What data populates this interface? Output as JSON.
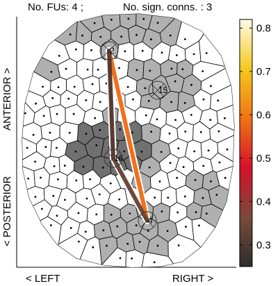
{
  "header": {
    "fus_text": "No. FUs: 4 ;",
    "conns_text": "No. sign. conns. : 3"
  },
  "axes": {
    "anterior_label": "ANTERIOR >",
    "posterior_label": "< POSTERIOR",
    "left_label": "< LEFT",
    "right_label": "RIGHT >"
  },
  "colorbar": {
    "ticks": [
      "0.8",
      "0.7",
      "0.6",
      "0.5",
      "0.4",
      "0.3"
    ],
    "tick_values": [
      0.8,
      0.7,
      0.6,
      0.5,
      0.4,
      0.3
    ],
    "range": [
      0.25,
      0.82
    ],
    "stops": [
      "#2d2d2d",
      "#7a4a3a",
      "#d4122a",
      "#f07414",
      "#f5c91e",
      "#fffbe8"
    ]
  },
  "functional_units": [
    {
      "id": "fu-2",
      "label": "2"
    },
    {
      "id": "fu-15",
      "label": "15"
    },
    {
      "id": "fu-16",
      "label": "16"
    },
    {
      "id": "fu-4",
      "label": "4"
    }
  ],
  "connections": [
    {
      "id": "conn-2-4",
      "from": "2",
      "to": "4",
      "value": 0.6,
      "color": "#f0701c"
    },
    {
      "id": "conn-2-16",
      "from": "2",
      "to": "16",
      "value": 0.35,
      "color": "#5a3a32"
    },
    {
      "id": "conn-16-4",
      "from": "16",
      "to": "4",
      "value": 0.38,
      "color": "#6e4a3c"
    }
  ],
  "colors": {
    "fu_fill": "#b0b0b0",
    "fu_dark_fill": "#707070",
    "cell_fill": "#ffffff",
    "edge_halo": "#ffffff"
  }
}
